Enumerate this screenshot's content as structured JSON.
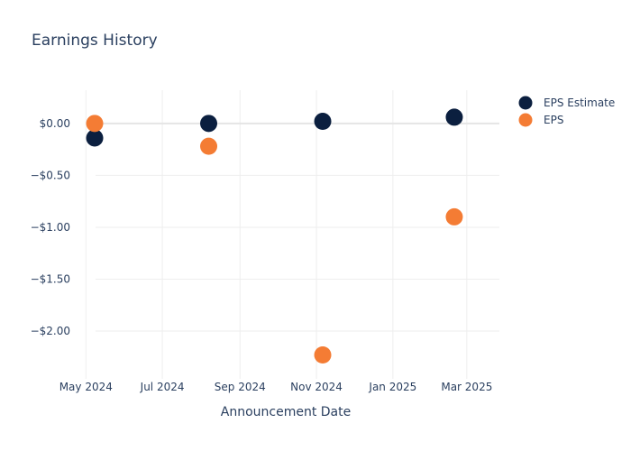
{
  "chart_data": {
    "type": "scatter",
    "title": "Earnings History",
    "xlabel": "Announcement Date",
    "ylabel": "",
    "x_ticks": [
      {
        "date": "2024-05-01",
        "label": "May 2024"
      },
      {
        "date": "2024-07-01",
        "label": "Jul 2024"
      },
      {
        "date": "2024-09-01",
        "label": "Sep 2024"
      },
      {
        "date": "2024-11-01",
        "label": "Nov 2024"
      },
      {
        "date": "2025-01-01",
        "label": "Jan 2025"
      },
      {
        "date": "2025-03-01",
        "label": "Mar 2025"
      }
    ],
    "y_ticks": [
      {
        "value": 0,
        "label": "$0.00"
      },
      {
        "value": -0.5,
        "label": "−$0.50"
      },
      {
        "value": -1.0,
        "label": "−$1.00"
      },
      {
        "value": -1.5,
        "label": "−$1.50"
      },
      {
        "value": -2.0,
        "label": "−$2.00"
      }
    ],
    "xlim": [
      "2024-04-20",
      "2025-03-27"
    ],
    "ylim": [
      -2.46,
      0.32
    ],
    "grid": true,
    "legend_position": "top-right",
    "series": [
      {
        "name": "EPS Estimate",
        "color": "#0b1f3f",
        "points": [
          {
            "x": "2024-05-08",
            "y": -0.14
          },
          {
            "x": "2024-08-07",
            "y": 0.0
          },
          {
            "x": "2024-11-06",
            "y": 0.02
          },
          {
            "x": "2025-02-19",
            "y": 0.06
          }
        ]
      },
      {
        "name": "EPS",
        "color": "#f47c34",
        "points": [
          {
            "x": "2024-05-08",
            "y": 0.0
          },
          {
            "x": "2024-08-07",
            "y": -0.22
          },
          {
            "x": "2024-11-06",
            "y": -2.23
          },
          {
            "x": "2025-02-19",
            "y": -0.9
          }
        ]
      }
    ]
  }
}
